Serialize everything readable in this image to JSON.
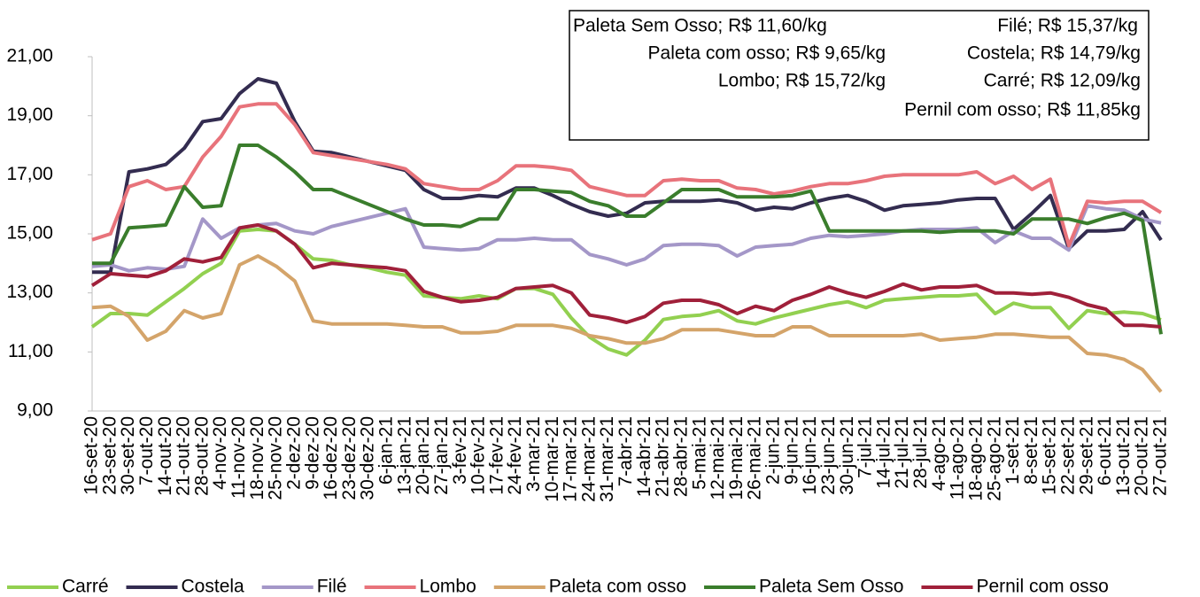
{
  "chart_data": {
    "type": "line",
    "categories": [
      "16-set-20",
      "23-set-20",
      "30-set-20",
      "7-out-20",
      "14-out-20",
      "21-out-20",
      "28-out-20",
      "4-nov-20",
      "11-nov-20",
      "18-nov-20",
      "25-nov-20",
      "2-dez-20",
      "9-dez-20",
      "16-dez-20",
      "23-dez-20",
      "30-dez-20",
      "6-jan-21",
      "13-jan-21",
      "20-jan-21",
      "27-jan-21",
      "3-fev-21",
      "10-fev-21",
      "17-fev-21",
      "24-fev-21",
      "3-mar-21",
      "10-mar-21",
      "17-mar-21",
      "24-mar-21",
      "31-mar-21",
      "7-abr-21",
      "14-abr-21",
      "21-abr-21",
      "28-abr-21",
      "5-mai-21",
      "12-mai-21",
      "19-mai-21",
      "26-mai-21",
      "2-jun-21",
      "9-jun-21",
      "16-jun-21",
      "23-jun-21",
      "30-jun-21",
      "7-jul-21",
      "14-jul-21",
      "21-jul-21",
      "28-jul-21",
      "4-ago-21",
      "11-ago-21",
      "18-ago-21",
      "25-ago-21",
      "1-set-21",
      "8-set-21",
      "15-set-21",
      "22-set-21",
      "29-set-21",
      "6-out-21",
      "13-out-21",
      "20-out-21",
      "27-out-21"
    ],
    "series": [
      {
        "name": "Carré",
        "color": "#92d050",
        "values": [
          11.85,
          12.3,
          12.3,
          12.25,
          12.7,
          13.15,
          13.65,
          14.0,
          15.1,
          15.15,
          15.1,
          14.65,
          14.15,
          14.1,
          13.95,
          13.85,
          13.7,
          13.6,
          12.9,
          12.85,
          12.8,
          12.9,
          12.8,
          13.15,
          13.15,
          12.95,
          12.15,
          11.5,
          11.1,
          10.9,
          11.4,
          12.1,
          12.2,
          12.25,
          12.4,
          12.05,
          11.95,
          12.15,
          12.3,
          12.45,
          12.6,
          12.7,
          12.5,
          12.75,
          12.8,
          12.85,
          12.9,
          12.9,
          12.95,
          12.3,
          12.65,
          12.5,
          12.5,
          11.8,
          12.4,
          12.3,
          12.35,
          12.3,
          12.09
        ]
      },
      {
        "name": "Costela",
        "color": "#332c50",
        "values": [
          13.7,
          13.7,
          17.1,
          17.2,
          17.35,
          17.9,
          18.8,
          18.9,
          19.75,
          20.25,
          20.1,
          18.8,
          17.8,
          17.75,
          17.6,
          17.45,
          17.3,
          17.15,
          16.5,
          16.2,
          16.2,
          16.3,
          16.25,
          16.55,
          16.55,
          16.3,
          16.0,
          15.75,
          15.6,
          15.7,
          16.05,
          16.1,
          16.1,
          16.1,
          16.15,
          16.05,
          15.8,
          15.9,
          15.85,
          16.05,
          16.2,
          16.3,
          16.1,
          15.8,
          15.95,
          16.0,
          16.05,
          16.15,
          16.2,
          16.2,
          15.15,
          15.7,
          16.3,
          14.5,
          15.1,
          15.1,
          15.15,
          15.75,
          14.79
        ]
      },
      {
        "name": "Filé",
        "color": "#a497c8",
        "values": [
          13.9,
          13.95,
          13.75,
          13.85,
          13.8,
          13.9,
          15.5,
          14.85,
          15.2,
          15.3,
          15.35,
          15.1,
          15.0,
          15.25,
          15.4,
          15.55,
          15.7,
          15.85,
          14.55,
          14.5,
          14.45,
          14.5,
          14.8,
          14.8,
          14.85,
          14.8,
          14.8,
          14.3,
          14.15,
          13.95,
          14.15,
          14.6,
          14.65,
          14.65,
          14.6,
          14.25,
          14.55,
          14.6,
          14.65,
          14.85,
          14.95,
          14.9,
          14.95,
          15.0,
          15.1,
          15.15,
          15.15,
          15.15,
          15.2,
          14.7,
          15.1,
          14.85,
          14.85,
          14.45,
          15.95,
          15.85,
          15.8,
          15.5,
          15.37
        ]
      },
      {
        "name": "Lombo",
        "color": "#e8737b",
        "values": [
          14.8,
          15.0,
          16.6,
          16.8,
          16.5,
          16.6,
          17.6,
          18.3,
          19.3,
          19.4,
          19.4,
          18.7,
          17.75,
          17.65,
          17.55,
          17.45,
          17.35,
          17.2,
          16.7,
          16.6,
          16.5,
          16.5,
          16.8,
          17.3,
          17.3,
          17.25,
          17.15,
          16.6,
          16.45,
          16.3,
          16.3,
          16.8,
          16.85,
          16.8,
          16.8,
          16.55,
          16.5,
          16.35,
          16.45,
          16.6,
          16.7,
          16.7,
          16.8,
          16.95,
          17.0,
          17.0,
          17.0,
          17.0,
          17.1,
          16.7,
          16.95,
          16.5,
          16.85,
          14.6,
          16.1,
          16.05,
          16.1,
          16.1,
          15.72
        ]
      },
      {
        "name": "Paleta com osso",
        "color": "#d4a46a",
        "values": [
          12.5,
          12.55,
          12.2,
          11.4,
          11.7,
          12.4,
          12.15,
          12.3,
          13.95,
          14.25,
          13.9,
          13.4,
          12.05,
          11.95,
          11.95,
          11.95,
          11.95,
          11.9,
          11.85,
          11.85,
          11.65,
          11.65,
          11.7,
          11.9,
          11.9,
          11.9,
          11.8,
          11.55,
          11.45,
          11.3,
          11.3,
          11.45,
          11.75,
          11.75,
          11.75,
          11.65,
          11.55,
          11.55,
          11.85,
          11.85,
          11.55,
          11.55,
          11.55,
          11.55,
          11.55,
          11.6,
          11.4,
          11.45,
          11.5,
          11.6,
          11.6,
          11.55,
          11.5,
          11.5,
          10.95,
          10.9,
          10.75,
          10.4,
          9.65
        ]
      },
      {
        "name": "Paleta Sem Osso",
        "color": "#3a7d2c",
        "values": [
          14.0,
          14.0,
          15.2,
          15.25,
          15.3,
          16.6,
          15.9,
          15.95,
          18.0,
          18.0,
          17.6,
          17.1,
          16.5,
          16.5,
          16.25,
          16.0,
          15.75,
          15.5,
          15.3,
          15.3,
          15.25,
          15.5,
          15.5,
          16.5,
          16.5,
          16.45,
          16.4,
          16.1,
          15.95,
          15.6,
          15.6,
          16.05,
          16.5,
          16.5,
          16.5,
          16.25,
          16.25,
          16.25,
          16.3,
          16.45,
          15.1,
          15.1,
          15.1,
          15.1,
          15.1,
          15.1,
          15.05,
          15.1,
          15.1,
          15.1,
          15.0,
          15.5,
          15.5,
          15.5,
          15.35,
          15.55,
          15.7,
          15.45,
          11.6
        ]
      },
      {
        "name": "Pernil com osso",
        "color": "#a0203a",
        "values": [
          13.25,
          13.65,
          13.6,
          13.55,
          13.75,
          14.15,
          14.05,
          14.2,
          15.2,
          15.3,
          15.1,
          14.65,
          13.85,
          14.0,
          13.95,
          13.9,
          13.85,
          13.75,
          13.05,
          12.85,
          12.7,
          12.75,
          12.85,
          13.15,
          13.2,
          13.25,
          13.0,
          12.25,
          12.15,
          12.0,
          12.2,
          12.65,
          12.75,
          12.75,
          12.6,
          12.3,
          12.55,
          12.4,
          12.75,
          12.95,
          13.2,
          13.0,
          12.85,
          13.05,
          13.3,
          13.1,
          13.2,
          13.2,
          13.25,
          13.0,
          13.0,
          12.95,
          13.0,
          12.85,
          12.6,
          12.45,
          11.9,
          11.9,
          11.85
        ]
      }
    ],
    "ylim": [
      9,
      21
    ],
    "yticks": [
      {
        "value": 9,
        "label": "9,00"
      },
      {
        "value": 11,
        "label": "11,00"
      },
      {
        "value": 13,
        "label": "13,00"
      },
      {
        "value": 15,
        "label": "15,00"
      },
      {
        "value": 17,
        "label": "17,00"
      },
      {
        "value": 19,
        "label": "19,00"
      },
      {
        "value": 21,
        "label": "21,00"
      }
    ],
    "annotations": [
      "Paleta Sem Osso; R$ 11,60/kg",
      "Filé; R$ 15,37/kg",
      "Paleta com osso; R$ 9,65/kg",
      "Costela; R$ 14,79/kg",
      "Lombo; R$ 15,72/kg",
      "Carré; R$ 12,09/kg",
      "Pernil com osso; R$ 11,85kg"
    ],
    "legend": "bottom"
  }
}
